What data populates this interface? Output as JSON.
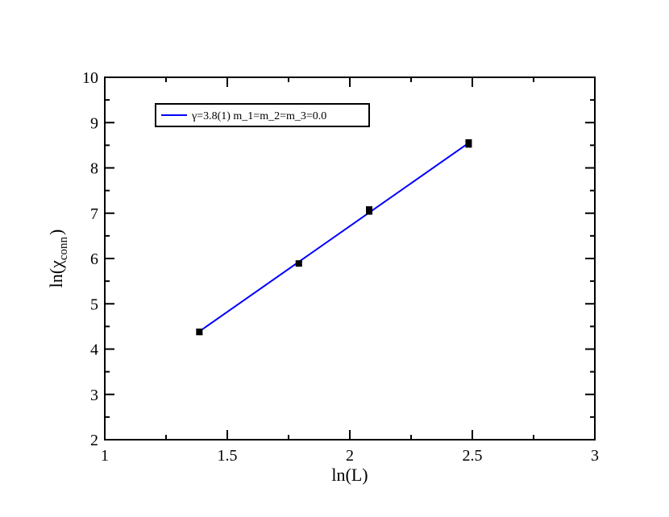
{
  "chart_data": {
    "type": "scatter",
    "xlabel": "ln(L)",
    "ylabel": {
      "prefix": "ln(",
      "symbol": "χ",
      "subscript": "conn",
      "suffix": ")"
    },
    "xlim": [
      1,
      3
    ],
    "ylim": [
      2,
      10
    ],
    "x_ticks": [
      "1",
      "1.5",
      "2",
      "2.5",
      "3"
    ],
    "y_ticks": [
      "2",
      "3",
      "4",
      "5",
      "6",
      "7",
      "8",
      "9",
      "10"
    ],
    "grid": false,
    "legend_position": "top-left",
    "series": [
      {
        "kind": "points",
        "marker": "square",
        "color": "#000000",
        "x": [
          1.386,
          1.792,
          2.079,
          2.485
        ],
        "y": [
          4.38,
          5.89,
          7.06,
          8.54
        ],
        "yerr": [
          0.06,
          0.04,
          0.08,
          0.08
        ]
      },
      {
        "kind": "fit-line",
        "name": "γ=3.8(1) m_1=m_2=m_3=0.0",
        "color": "#0000ff",
        "x": [
          1.386,
          2.485
        ],
        "y": [
          4.39,
          8.55
        ]
      }
    ]
  }
}
